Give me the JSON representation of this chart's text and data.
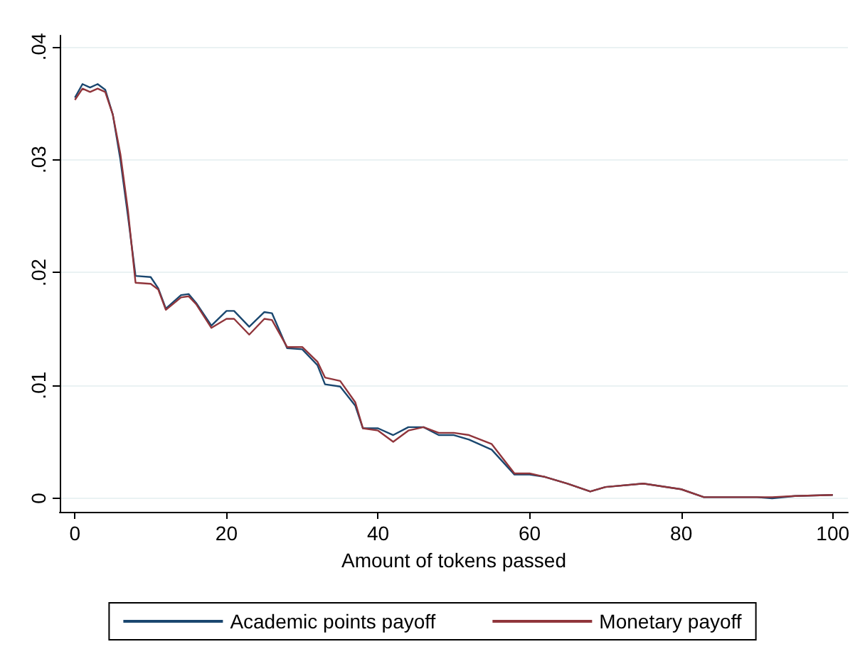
{
  "chart_data": {
    "type": "line",
    "xlabel": "Amount of tokens passed",
    "x": [
      0,
      1,
      2,
      3,
      4,
      5,
      6,
      7,
      8,
      10,
      11,
      12,
      14,
      15,
      16,
      18,
      20,
      21,
      23,
      25,
      26,
      28,
      30,
      32,
      33,
      35,
      37,
      38,
      40,
      42,
      44,
      46,
      48,
      50,
      52,
      55,
      58,
      60,
      62,
      65,
      68,
      70,
      75,
      80,
      83,
      90,
      92,
      95,
      100
    ],
    "series": [
      {
        "name": "Academic points payoff",
        "color": "#1a476f",
        "values": [
          0.0355,
          0.0367,
          0.0364,
          0.0367,
          0.0362,
          0.034,
          0.03,
          0.025,
          0.0197,
          0.0196,
          0.0186,
          0.0168,
          0.018,
          0.0181,
          0.0173,
          0.0153,
          0.0166,
          0.0166,
          0.0152,
          0.0165,
          0.0164,
          0.0133,
          0.0132,
          0.0118,
          0.0101,
          0.0099,
          0.0082,
          0.0062,
          0.0062,
          0.0056,
          0.0063,
          0.0063,
          0.0056,
          0.0056,
          0.0052,
          0.0043,
          0.0021,
          0.0021,
          0.0019,
          0.0013,
          0.0006,
          0.001,
          0.0013,
          0.0008,
          0.0001,
          0.0001,
          0.0,
          0.0002,
          0.0003
        ]
      },
      {
        "name": "Monetary payoff",
        "color": "#90353b",
        "values": [
          0.0353,
          0.0363,
          0.036,
          0.0363,
          0.036,
          0.034,
          0.0305,
          0.0255,
          0.0191,
          0.019,
          0.0185,
          0.0167,
          0.0178,
          0.0179,
          0.0172,
          0.0151,
          0.0159,
          0.0159,
          0.0145,
          0.0159,
          0.0158,
          0.0134,
          0.0134,
          0.0121,
          0.0107,
          0.0104,
          0.0085,
          0.0062,
          0.006,
          0.005,
          0.006,
          0.0063,
          0.0058,
          0.0058,
          0.0056,
          0.0048,
          0.0022,
          0.0022,
          0.0019,
          0.0013,
          0.0006,
          0.001,
          0.0013,
          0.0008,
          0.0001,
          0.0001,
          0.0001,
          0.0002,
          0.0003
        ]
      }
    ],
    "xlim": [
      -2,
      102
    ],
    "xticks": [
      0,
      20,
      40,
      60,
      80,
      100
    ],
    "ylim": [
      -0.0012,
      0.041
    ],
    "yticks": [
      {
        "value": 0,
        "label": "0"
      },
      {
        "value": 0.01,
        "label": ".01"
      },
      {
        "value": 0.02,
        "label": ".02"
      },
      {
        "value": 0.03,
        "label": ".03"
      },
      {
        "value": 0.04,
        "label": ".04"
      }
    ],
    "grid": "y",
    "legend": "bottom",
    "marker": "none",
    "line_style": "solid"
  }
}
